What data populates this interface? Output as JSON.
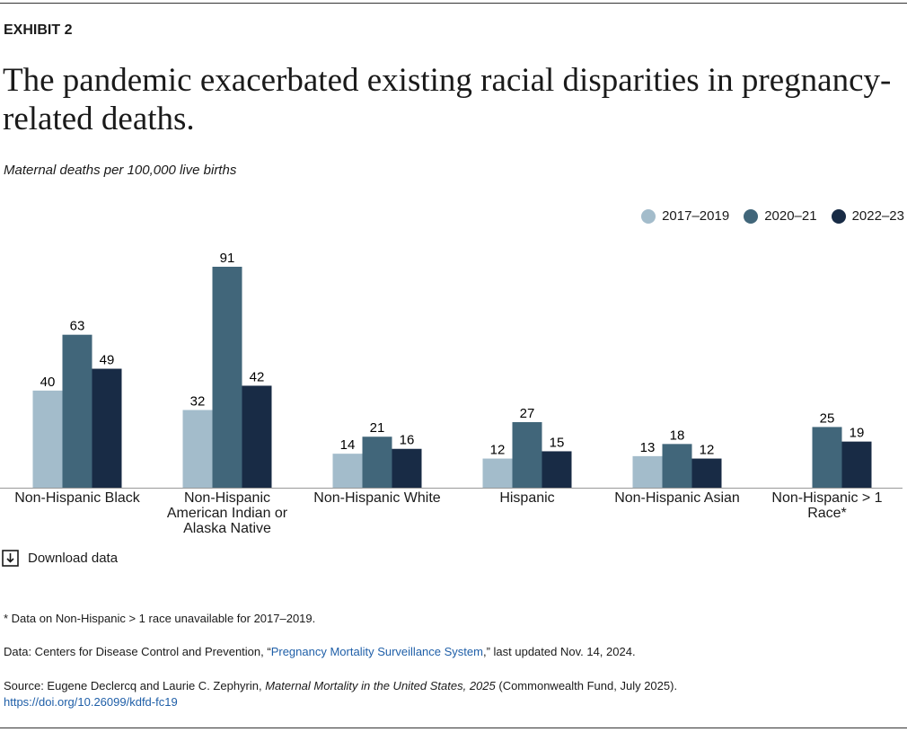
{
  "exhibit": "EXHIBIT 2",
  "chart_data": {
    "type": "bar",
    "title": "The pandemic exacerbated existing racial disparities in pregnancy-related deaths.",
    "subtitle": "Maternal deaths per 100,000 live births",
    "categories": [
      "Non-Hispanic Black",
      "Non-Hispanic American Indian or Alaska Native",
      "Non-Hispanic White",
      "Hispanic",
      "Non-Hispanic Asian",
      "Non-Hispanic > 1 Race*"
    ],
    "series": [
      {
        "name": "2017–2019",
        "color": "#a3bccb",
        "values": [
          40,
          32,
          14,
          12,
          13,
          null
        ]
      },
      {
        "name": "2020–21",
        "color": "#41667a",
        "values": [
          63,
          91,
          21,
          27,
          18,
          25
        ]
      },
      {
        "name": "2022–23",
        "color": "#182b45",
        "values": [
          49,
          42,
          16,
          15,
          12,
          19
        ]
      }
    ],
    "legend": "top-right"
  },
  "download": "Download data",
  "footer": {
    "note": "* Data on Non-Hispanic > 1 race unavailable for 2017–2019.",
    "data": {
      "prefix": "Data: Centers for Disease Control and Prevention, “",
      "link": "Pregnancy Mortality Surveillance System",
      "suffix": ",” last updated Nov. 14, 2024."
    },
    "source": {
      "prefix": "Source: Eugene Declercq and Laurie C. Zephyrin, ",
      "italic": "Maternal Mortality in the United States, 2025",
      "suffix": " (Commonwealth Fund, July 2025).",
      "link": "https://doi.org/10.26099/kdfd-fc19"
    }
  }
}
